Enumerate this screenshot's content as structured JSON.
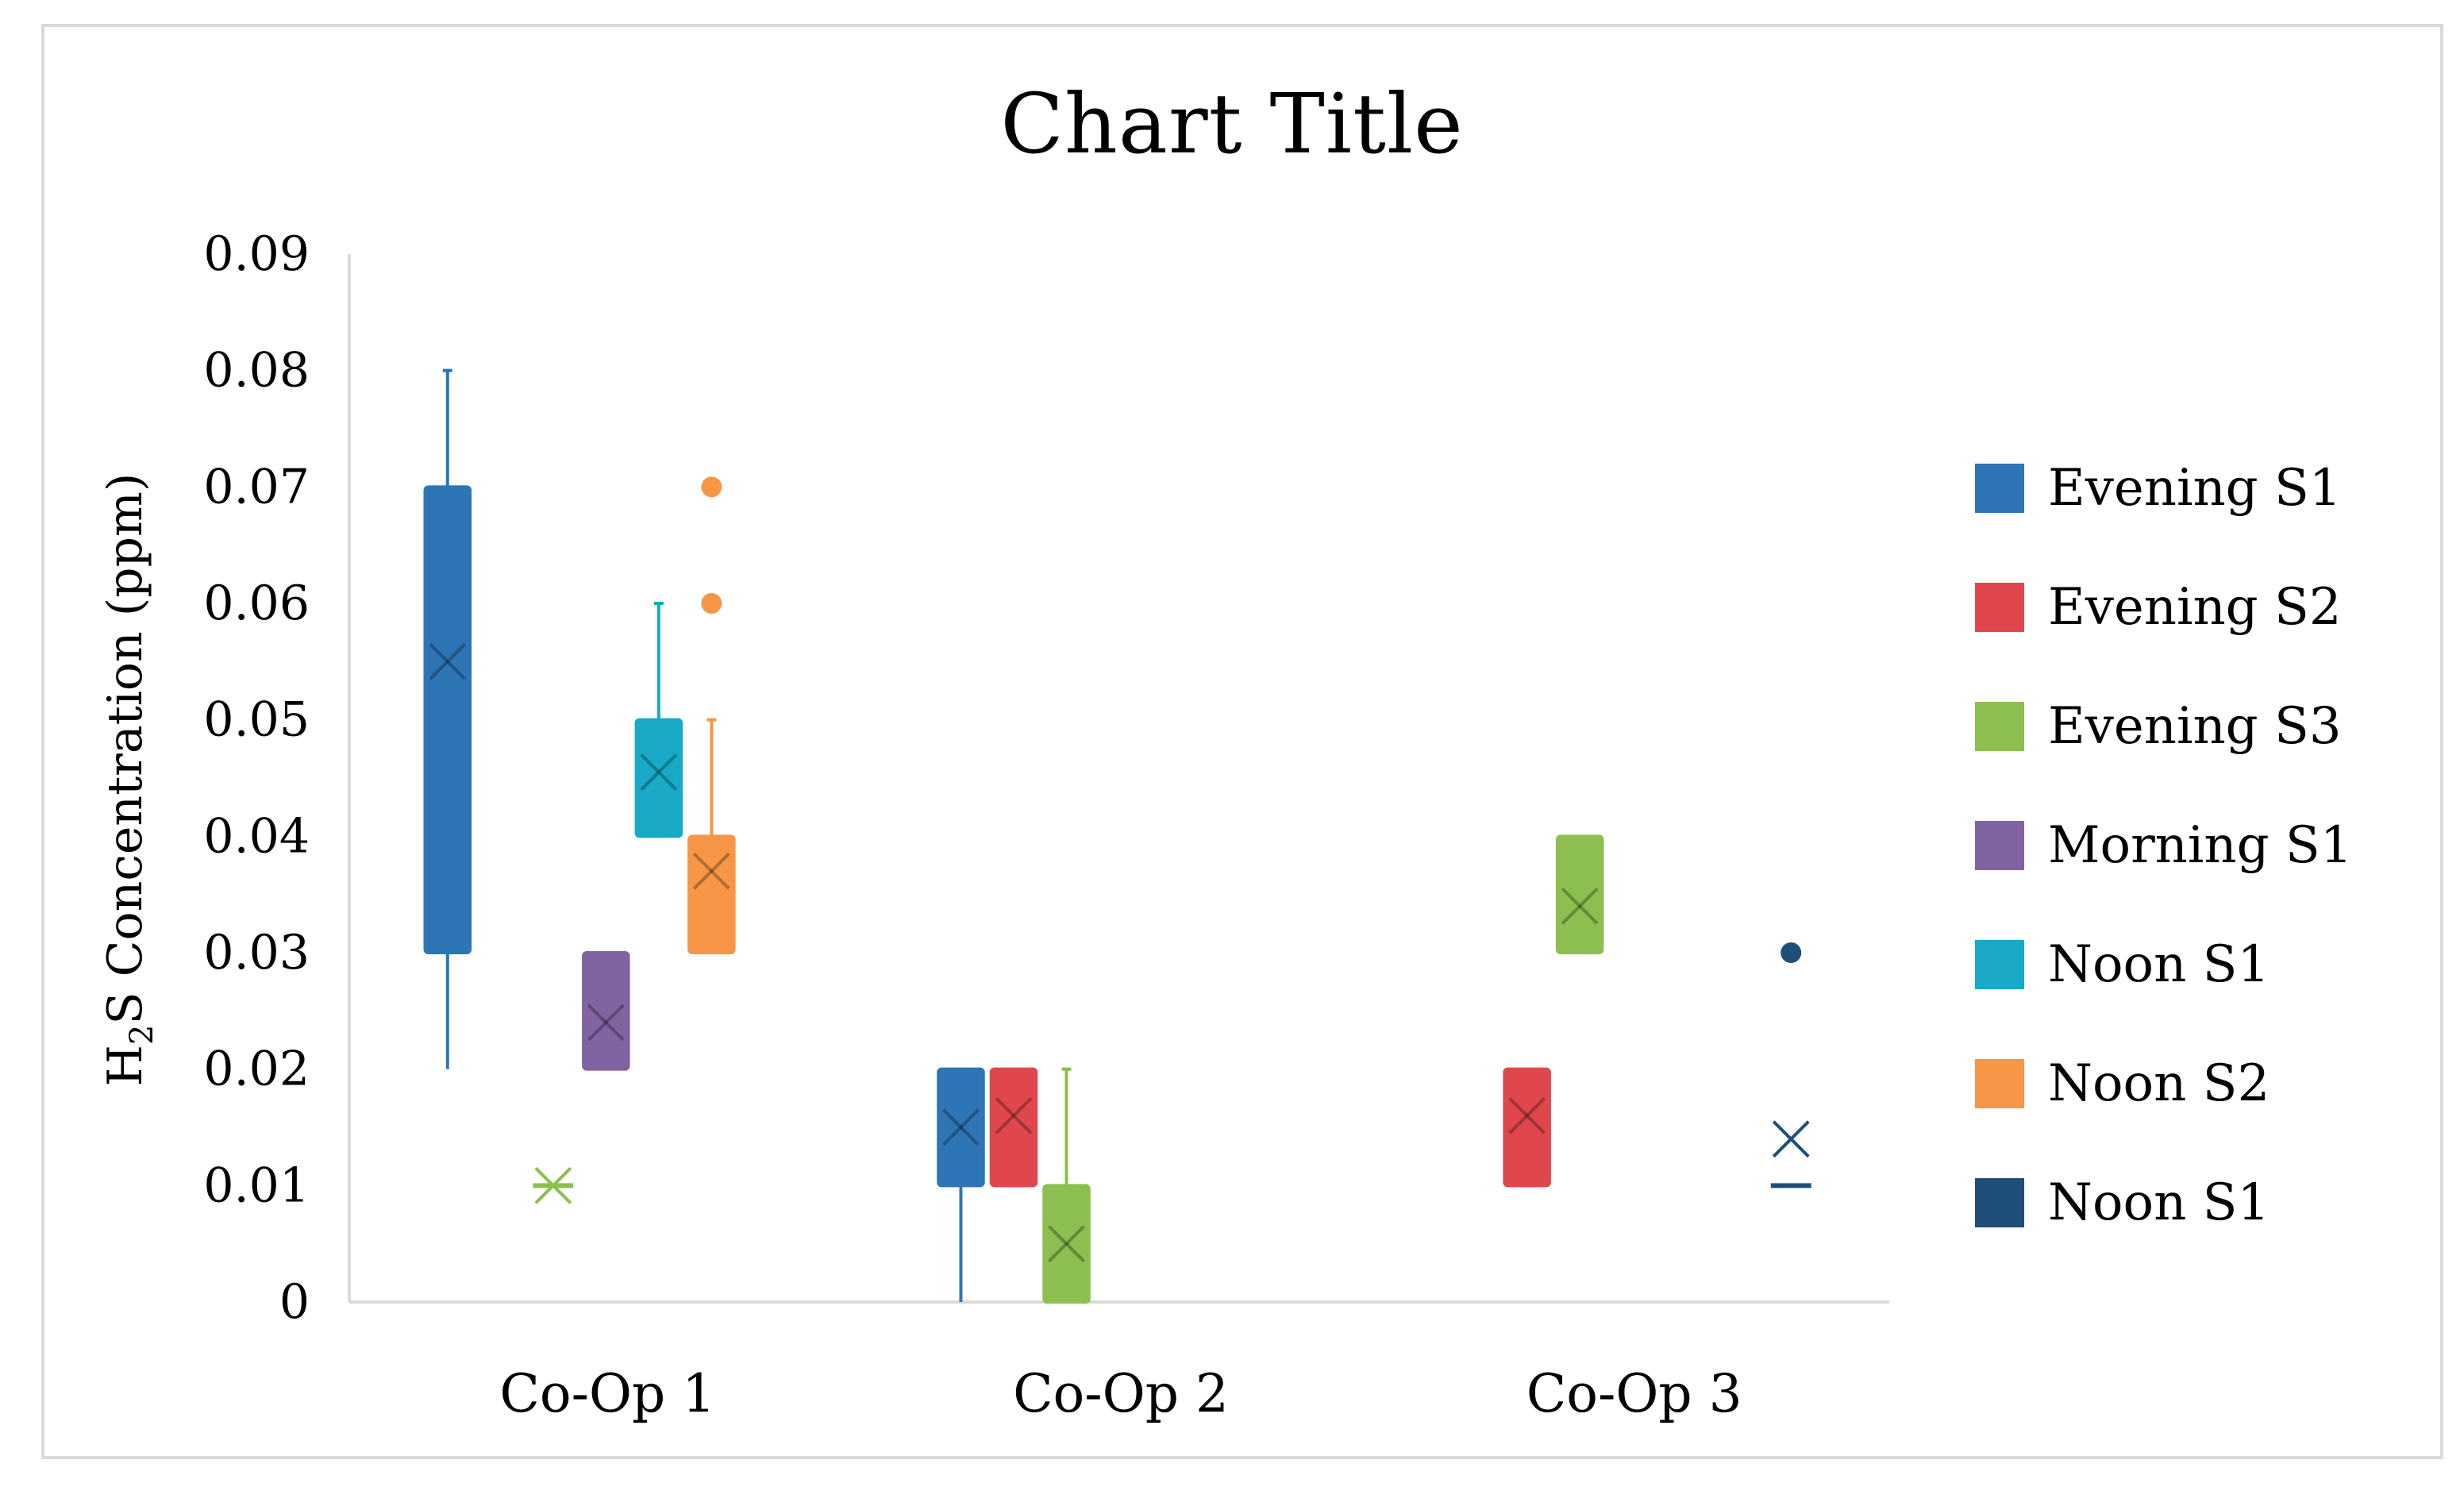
{
  "chart_data": {
    "type": "box",
    "title": "Chart Title",
    "ylabel_main": "H",
    "ylabel_sub": "2",
    "ylabel_rest": "S Concentration  (ppm)",
    "xlabel": "",
    "ylim": [
      0,
      0.09
    ],
    "yticks": [
      "0",
      "0.01",
      "0.02",
      "0.03",
      "0.04",
      "0.05",
      "0.06",
      "0.07",
      "0.08",
      "0.09"
    ],
    "categories": [
      "Co-Op 1",
      "Co-Op 2",
      "Co-Op 3"
    ],
    "grid": false,
    "legend_position": "right",
    "series": [
      {
        "name": "Evening S1",
        "color": "#2e75b6",
        "boxes": [
          {
            "category": "Co-Op 1",
            "min": 0.02,
            "q1": 0.03,
            "median": 0.055,
            "q3": 0.07,
            "max": 0.08,
            "mean": 0.055,
            "outliers": []
          },
          {
            "category": "Co-Op 2",
            "min": 0.0,
            "q1": 0.01,
            "median": 0.015,
            "q3": 0.02,
            "max": 0.02,
            "mean": 0.015,
            "outliers": []
          }
        ]
      },
      {
        "name": "Evening S2",
        "color": "#e0474c",
        "boxes": [
          {
            "category": "Co-Op 2",
            "min": 0.01,
            "q1": 0.01,
            "median": 0.015,
            "q3": 0.02,
            "max": 0.02,
            "mean": 0.016,
            "outliers": []
          },
          {
            "category": "Co-Op 3",
            "min": 0.01,
            "q1": 0.01,
            "median": 0.015,
            "q3": 0.02,
            "max": 0.02,
            "mean": 0.016,
            "outliers": []
          }
        ]
      },
      {
        "name": "Evening S3",
        "color": "#8cbf4f",
        "boxes": [
          {
            "category": "Co-Op 1",
            "min": 0.01,
            "q1": 0.01,
            "median": 0.01,
            "q3": 0.01,
            "max": 0.01,
            "mean": 0.01,
            "outliers": []
          },
          {
            "category": "Co-Op 2",
            "min": 0.0,
            "q1": 0.0,
            "median": 0.005,
            "q3": 0.01,
            "max": 0.02,
            "mean": 0.005,
            "outliers": []
          },
          {
            "category": "Co-Op 3",
            "min": 0.03,
            "q1": 0.03,
            "median": 0.035,
            "q3": 0.04,
            "max": 0.04,
            "mean": 0.034,
            "outliers": []
          }
        ]
      },
      {
        "name": "Morning S1",
        "color": "#8064a2",
        "boxes": [
          {
            "category": "Co-Op 1",
            "min": 0.02,
            "q1": 0.02,
            "median": 0.025,
            "q3": 0.03,
            "max": 0.03,
            "mean": 0.024,
            "outliers": []
          }
        ]
      },
      {
        "name": "Noon S1",
        "color": "#17a9c6",
        "boxes": [
          {
            "category": "Co-Op 1",
            "min": 0.04,
            "q1": 0.04,
            "median": 0.045,
            "q3": 0.05,
            "max": 0.06,
            "mean": 0.0455,
            "outliers": []
          }
        ]
      },
      {
        "name": "Noon S2",
        "color": "#f79646",
        "boxes": [
          {
            "category": "Co-Op 1",
            "min": 0.03,
            "q1": 0.03,
            "median": 0.035,
            "q3": 0.04,
            "max": 0.05,
            "mean": 0.037,
            "outliers": [
              0.06,
              0.07
            ]
          }
        ]
      },
      {
        "name": "Noon S1",
        "color": "#1f4e79",
        "boxes": [
          {
            "category": "Co-Op 3",
            "min": 0.01,
            "q1": 0.01,
            "median": 0.01,
            "q3": 0.01,
            "max": 0.01,
            "mean": 0.014,
            "outliers": [
              0.03
            ]
          }
        ]
      }
    ]
  }
}
